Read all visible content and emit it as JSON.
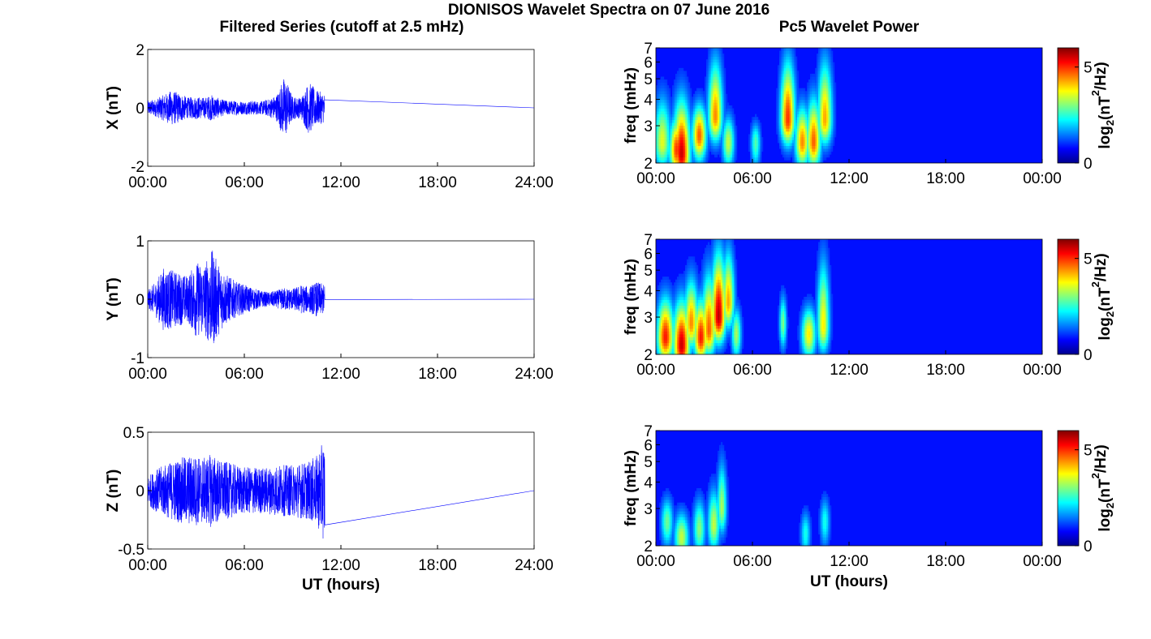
{
  "figure": {
    "title": "DIONISOS Wavelet Spectra on 07 June 2016",
    "left_title": "Filtered Series (cutoff at 2.5 mHz)",
    "right_title": "Pc5 Wavelet Power",
    "line_color": "#0000ff",
    "background": "#ffffff"
  },
  "chart_data": [
    {
      "id": "x-series",
      "type": "line",
      "ylabel": "X (nT)",
      "xlabel": "",
      "xlim": [
        0,
        24
      ],
      "ylim": [
        -2,
        2
      ],
      "yticks": [
        "-2",
        "0",
        "2"
      ],
      "xticks": [
        "00:00",
        "06:00",
        "12:00",
        "18:00",
        "24:00"
      ],
      "data_end_hour": 11.0,
      "envelope": {
        "hours": [
          0,
          0.5,
          1,
          1.5,
          2,
          2.5,
          3,
          3.5,
          4,
          4.5,
          5,
          5.5,
          6,
          6.5,
          7,
          7.5,
          8,
          8.5,
          9,
          9.5,
          10,
          10.5,
          11
        ],
        "amplitude": [
          0.25,
          0.3,
          0.45,
          0.6,
          0.5,
          0.35,
          0.4,
          0.35,
          0.45,
          0.3,
          0.25,
          0.25,
          0.22,
          0.25,
          0.22,
          0.3,
          0.45,
          1.1,
          0.4,
          0.35,
          0.9,
          0.6,
          0.5
        ]
      }
    },
    {
      "id": "y-series",
      "type": "line",
      "ylabel": "Y (nT)",
      "xlabel": "",
      "xlim": [
        0,
        24
      ],
      "ylim": [
        -1,
        1
      ],
      "yticks": [
        "-1",
        "0",
        "1"
      ],
      "xticks": [
        "00:00",
        "06:00",
        "12:00",
        "18:00",
        "24:00"
      ],
      "data_end_hour": 11.0,
      "envelope": {
        "hours": [
          0,
          0.5,
          1,
          1.5,
          2,
          2.5,
          3,
          3.5,
          4,
          4.5,
          5,
          5.5,
          6,
          6.5,
          7,
          7.5,
          8,
          8.5,
          9,
          9.5,
          10,
          10.5,
          11
        ],
        "amplitude": [
          0.15,
          0.3,
          0.55,
          0.5,
          0.45,
          0.4,
          0.65,
          0.6,
          0.85,
          0.55,
          0.4,
          0.3,
          0.25,
          0.2,
          0.15,
          0.12,
          0.15,
          0.2,
          0.18,
          0.25,
          0.22,
          0.3,
          0.25
        ]
      }
    },
    {
      "id": "z-series",
      "type": "line",
      "ylabel": "Z (nT)",
      "xlabel": "UT (hours)",
      "xlim": [
        0,
        24
      ],
      "ylim": [
        -0.5,
        0.5
      ],
      "yticks": [
        "-0.5",
        "0",
        "0.5"
      ],
      "xticks": [
        "00:00",
        "06:00",
        "12:00",
        "18:00",
        "24:00"
      ],
      "data_end_hour": 11.0,
      "envelope": {
        "hours": [
          0,
          0.5,
          1,
          1.5,
          2,
          2.5,
          3,
          3.5,
          4,
          4.5,
          5,
          5.5,
          6,
          6.5,
          7,
          7.5,
          8,
          8.5,
          9,
          9.5,
          10,
          10.5,
          11
        ],
        "amplitude": [
          0.12,
          0.18,
          0.22,
          0.25,
          0.28,
          0.3,
          0.3,
          0.28,
          0.32,
          0.26,
          0.24,
          0.22,
          0.2,
          0.2,
          0.2,
          0.2,
          0.22,
          0.22,
          0.22,
          0.24,
          0.25,
          0.3,
          0.45
        ]
      }
    },
    {
      "id": "x-wavelet",
      "type": "heatmap",
      "ylabel": "freq (mHz)",
      "xlabel": "",
      "xlim": [
        0,
        24
      ],
      "ylim": [
        2,
        7
      ],
      "yscale": "log",
      "yticks": [
        "2",
        "3",
        "4",
        "5",
        "6",
        "7"
      ],
      "xticks": [
        "00:00",
        "06:00",
        "12:00",
        "18:00",
        "00:00"
      ],
      "colorbar": {
        "label_base": "log",
        "label_sub": "2",
        "label_unit": "(nT",
        "label_sup": "2",
        "label_tail": "/Hz)",
        "ticks": [
          "0",
          "5"
        ],
        "range": [
          0,
          6
        ]
      },
      "blobs": [
        {
          "t": 0.4,
          "f": 2.5,
          "dt": 0.35,
          "fh": 4.5,
          "peak": 3.2
        },
        {
          "t": 1.3,
          "f": 2.3,
          "dt": 0.3,
          "fh": 3.5,
          "peak": 4.8
        },
        {
          "t": 1.6,
          "f": 2.2,
          "dt": 0.35,
          "fh": 4.5,
          "peak": 5.5
        },
        {
          "t": 2.7,
          "f": 2.7,
          "dt": 0.3,
          "fh": 4.0,
          "peak": 4.5
        },
        {
          "t": 3.7,
          "f": 3.3,
          "dt": 0.3,
          "fh": 7.0,
          "peak": 4.2
        },
        {
          "t": 4.5,
          "f": 2.5,
          "dt": 0.25,
          "fh": 3.5,
          "peak": 3.0
        },
        {
          "t": 6.2,
          "f": 2.5,
          "dt": 0.2,
          "fh": 3.2,
          "peak": 2.2
        },
        {
          "t": 8.2,
          "f": 3.2,
          "dt": 0.3,
          "fh": 7.0,
          "peak": 4.8
        },
        {
          "t": 9.1,
          "f": 2.5,
          "dt": 0.3,
          "fh": 4.0,
          "peak": 4.2
        },
        {
          "t": 9.8,
          "f": 2.5,
          "dt": 0.3,
          "fh": 4.5,
          "peak": 4.5
        },
        {
          "t": 10.5,
          "f": 3.2,
          "dt": 0.3,
          "fh": 7.0,
          "peak": 4.0
        }
      ]
    },
    {
      "id": "y-wavelet",
      "type": "heatmap",
      "ylabel": "freq (mHz)",
      "xlabel": "",
      "xlim": [
        0,
        24
      ],
      "ylim": [
        2,
        7
      ],
      "yscale": "log",
      "yticks": [
        "2",
        "3",
        "4",
        "5",
        "6",
        "7"
      ],
      "xticks": [
        "00:00",
        "06:00",
        "12:00",
        "18:00",
        "00:00"
      ],
      "colorbar": {
        "label_base": "log",
        "label_sub": "2",
        "label_unit": "(nT",
        "label_sup": "2",
        "label_tail": "/Hz)",
        "ticks": [
          "0",
          "5"
        ],
        "range": [
          0,
          6
        ]
      },
      "blobs": [
        {
          "t": 0.6,
          "f": 2.4,
          "dt": 0.35,
          "fh": 4.0,
          "peak": 5.0
        },
        {
          "t": 1.6,
          "f": 2.2,
          "dt": 0.35,
          "fh": 4.0,
          "peak": 5.5
        },
        {
          "t": 2.2,
          "f": 2.8,
          "dt": 0.3,
          "fh": 5.0,
          "peak": 4.2
        },
        {
          "t": 2.8,
          "f": 2.4,
          "dt": 0.3,
          "fh": 4.0,
          "peak": 5.0
        },
        {
          "t": 3.3,
          "f": 2.6,
          "dt": 0.3,
          "fh": 5.5,
          "peak": 4.5
        },
        {
          "t": 3.9,
          "f": 3.0,
          "dt": 0.3,
          "fh": 7.0,
          "peak": 5.6
        },
        {
          "t": 4.5,
          "f": 3.5,
          "dt": 0.25,
          "fh": 7.0,
          "peak": 4.0
        },
        {
          "t": 5.0,
          "f": 2.5,
          "dt": 0.2,
          "fh": 3.5,
          "peak": 2.8
        },
        {
          "t": 7.9,
          "f": 2.8,
          "dt": 0.15,
          "fh": 4.0,
          "peak": 2.5
        },
        {
          "t": 9.5,
          "f": 2.5,
          "dt": 0.3,
          "fh": 3.5,
          "peak": 3.5
        },
        {
          "t": 10.4,
          "f": 2.7,
          "dt": 0.25,
          "fh": 6.5,
          "peak": 3.5
        }
      ]
    },
    {
      "id": "z-wavelet",
      "type": "heatmap",
      "ylabel": "freq (mHz)",
      "xlabel": "UT (hours)",
      "xlim": [
        0,
        24
      ],
      "ylim": [
        2,
        7
      ],
      "yscale": "log",
      "yticks": [
        "2",
        "3",
        "4",
        "5",
        "6",
        "7"
      ],
      "xticks": [
        "00:00",
        "06:00",
        "12:00",
        "18:00",
        "00:00"
      ],
      "colorbar": {
        "label_base": "log",
        "label_sub": "2",
        "label_unit": "(nT",
        "label_sup": "2",
        "label_tail": "/Hz)",
        "ticks": [
          "0",
          "5"
        ],
        "range": [
          0,
          6
        ]
      },
      "blobs": [
        {
          "t": 0.7,
          "f": 2.6,
          "dt": 0.25,
          "fh": 3.5,
          "peak": 2.4
        },
        {
          "t": 1.6,
          "f": 2.2,
          "dt": 0.3,
          "fh": 3.0,
          "peak": 3.0
        },
        {
          "t": 2.7,
          "f": 2.4,
          "dt": 0.25,
          "fh": 3.5,
          "peak": 2.6
        },
        {
          "t": 3.6,
          "f": 2.5,
          "dt": 0.25,
          "fh": 4.0,
          "peak": 3.0
        },
        {
          "t": 4.1,
          "f": 3.0,
          "dt": 0.2,
          "fh": 5.5,
          "peak": 2.8
        },
        {
          "t": 9.3,
          "f": 2.3,
          "dt": 0.2,
          "fh": 3.0,
          "peak": 1.8
        },
        {
          "t": 10.5,
          "f": 2.6,
          "dt": 0.2,
          "fh": 3.5,
          "peak": 1.8
        }
      ]
    }
  ]
}
